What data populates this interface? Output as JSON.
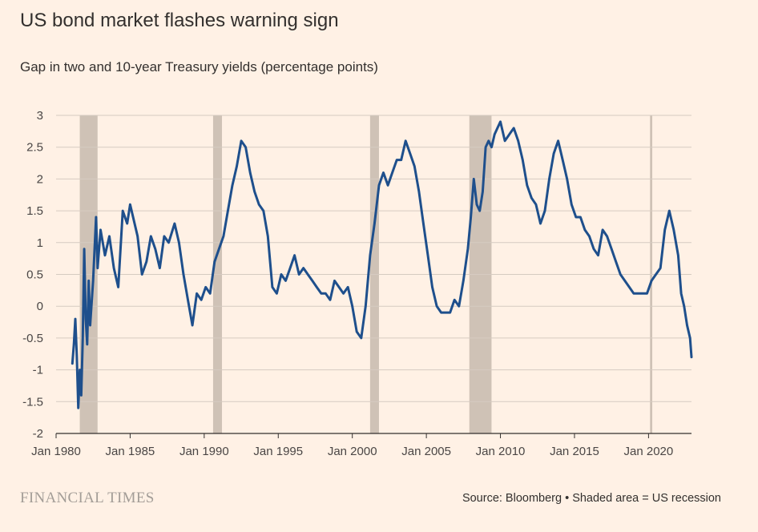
{
  "header": {
    "title": "US bond market flashes warning sign",
    "subtitle": "Gap in two and 10-year Treasury yields (percentage points)"
  },
  "footer": {
    "brand": "FINANCIAL TIMES",
    "source": "Source: Bloomberg • Shaded area = US recession"
  },
  "colors": {
    "background": "#fff1e5",
    "line": "#1e4f8c",
    "recession": "#cfc2b6",
    "grid": "#d6cbc1",
    "axis": "#33302e"
  },
  "chart_data": {
    "type": "line",
    "title": "US bond market flashes warning sign",
    "subtitle": "Gap in two and 10-year Treasury yields (percentage points)",
    "xlabel": "",
    "ylabel": "",
    "xlim": [
      1980.0,
      2022.9
    ],
    "ylim": [
      -2,
      3
    ],
    "grid": "horizontal",
    "x_ticks": [
      1980,
      1985,
      1990,
      1995,
      2000,
      2005,
      2010,
      2015,
      2020
    ],
    "x_tick_labels": [
      "Jan 1980",
      "Jan 1985",
      "Jan 1990",
      "Jan 1995",
      "Jan 2000",
      "Jan 2005",
      "Jan 2010",
      "Jan 2015",
      "Jan 2020"
    ],
    "y_ticks": [
      -2,
      -1.5,
      -1,
      -0.5,
      0,
      0.5,
      1,
      1.5,
      2,
      2.5,
      3
    ],
    "y_tick_labels": [
      "-2",
      "-1.5",
      "-1",
      "-0.5",
      "0",
      "0.5",
      "1",
      "1.5",
      "2",
      "2.5",
      "3"
    ],
    "recessions": [
      [
        1981.6,
        1982.8
      ],
      [
        1990.6,
        1991.2
      ],
      [
        2001.2,
        2001.8
      ],
      [
        2007.9,
        2009.4
      ],
      [
        2020.1,
        2020.25
      ]
    ],
    "series": [
      {
        "color": "#1e4f8c",
        "x": [
          1981.1,
          1981.2,
          1981.3,
          1981.4,
          1981.5,
          1981.6,
          1981.7,
          1981.8,
          1981.9,
          1982.0,
          1982.1,
          1982.2,
          1982.3,
          1982.5,
          1982.7,
          1982.8,
          1983.0,
          1983.3,
          1983.6,
          1983.9,
          1984.2,
          1984.5,
          1984.8,
          1985.0,
          1985.2,
          1985.5,
          1985.8,
          1986.1,
          1986.4,
          1986.7,
          1987.0,
          1987.3,
          1987.6,
          1988.0,
          1988.3,
          1988.6,
          1988.9,
          1989.2,
          1989.5,
          1989.8,
          1990.1,
          1990.4,
          1990.7,
          1991.0,
          1991.3,
          1991.6,
          1991.9,
          1992.2,
          1992.5,
          1992.8,
          1993.1,
          1993.4,
          1993.7,
          1994.0,
          1994.3,
          1994.6,
          1994.9,
          1995.2,
          1995.5,
          1995.8,
          1996.1,
          1996.4,
          1996.7,
          1997.0,
          1997.3,
          1997.6,
          1997.9,
          1998.2,
          1998.5,
          1998.8,
          1999.1,
          1999.4,
          1999.7,
          2000.0,
          2000.3,
          2000.6,
          2000.9,
          2001.2,
          2001.5,
          2001.8,
          2002.1,
          2002.4,
          2002.7,
          2003.0,
          2003.3,
          2003.6,
          2003.9,
          2004.2,
          2004.5,
          2004.8,
          2005.1,
          2005.4,
          2005.7,
          2006.0,
          2006.3,
          2006.6,
          2006.9,
          2007.2,
          2007.5,
          2007.8,
          2008.0,
          2008.2,
          2008.4,
          2008.6,
          2008.8,
          2009.0,
          2009.2,
          2009.4,
          2009.6,
          2009.8,
          2010.0,
          2010.3,
          2010.6,
          2010.9,
          2011.2,
          2011.5,
          2011.8,
          2012.1,
          2012.4,
          2012.7,
          2013.0,
          2013.3,
          2013.6,
          2013.9,
          2014.2,
          2014.5,
          2014.8,
          2015.1,
          2015.4,
          2015.7,
          2016.0,
          2016.3,
          2016.6,
          2016.9,
          2017.2,
          2017.5,
          2017.8,
          2018.1,
          2018.4,
          2018.7,
          2019.0,
          2019.3,
          2019.6,
          2019.9,
          2020.2,
          2020.5,
          2020.8,
          2021.1,
          2021.4,
          2021.7,
          2022.0,
          2022.2,
          2022.4,
          2022.6,
          2022.8,
          2022.9
        ],
        "values": [
          -0.9,
          -0.6,
          -0.2,
          -0.8,
          -1.6,
          -1.0,
          -1.4,
          -0.5,
          0.9,
          -0.2,
          -0.6,
          0.4,
          -0.3,
          0.4,
          1.4,
          0.6,
          1.2,
          0.8,
          1.1,
          0.6,
          0.3,
          1.5,
          1.3,
          1.6,
          1.4,
          1.1,
          0.5,
          0.7,
          1.1,
          0.9,
          0.6,
          1.1,
          1.0,
          1.3,
          1.0,
          0.5,
          0.1,
          -0.3,
          0.2,
          0.1,
          0.3,
          0.2,
          0.7,
          0.9,
          1.1,
          1.5,
          1.9,
          2.2,
          2.6,
          2.5,
          2.1,
          1.8,
          1.6,
          1.5,
          1.1,
          0.3,
          0.2,
          0.5,
          0.4,
          0.6,
          0.8,
          0.5,
          0.6,
          0.5,
          0.4,
          0.3,
          0.2,
          0.2,
          0.1,
          0.4,
          0.3,
          0.2,
          0.3,
          0.0,
          -0.4,
          -0.5,
          0.0,
          0.8,
          1.3,
          1.9,
          2.1,
          1.9,
          2.1,
          2.3,
          2.3,
          2.6,
          2.4,
          2.2,
          1.8,
          1.3,
          0.8,
          0.3,
          0.0,
          -0.1,
          -0.1,
          -0.1,
          0.1,
          0.0,
          0.4,
          0.9,
          1.4,
          2.0,
          1.6,
          1.5,
          1.8,
          2.5,
          2.6,
          2.5,
          2.7,
          2.8,
          2.9,
          2.6,
          2.7,
          2.8,
          2.6,
          2.3,
          1.9,
          1.7,
          1.6,
          1.3,
          1.5,
          2.0,
          2.4,
          2.6,
          2.3,
          2.0,
          1.6,
          1.4,
          1.4,
          1.2,
          1.1,
          0.9,
          0.8,
          1.2,
          1.1,
          0.9,
          0.7,
          0.5,
          0.4,
          0.3,
          0.2,
          0.2,
          0.2,
          0.2,
          0.4,
          0.5,
          0.6,
          1.2,
          1.5,
          1.2,
          0.8,
          0.2,
          0.0,
          -0.3,
          -0.5,
          -0.8
        ]
      }
    ]
  }
}
